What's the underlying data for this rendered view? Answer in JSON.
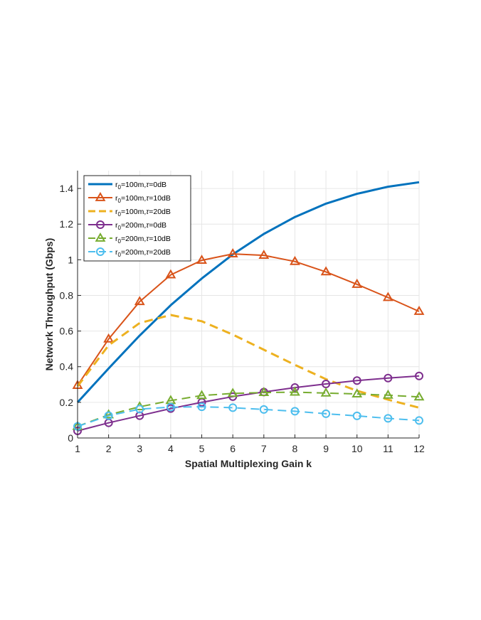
{
  "chart_data": {
    "type": "line",
    "title": "",
    "xlabel": "Spatial Multiplexing Gain k",
    "ylabel": "Network Throughput (Gbps)",
    "xlim": [
      1,
      12
    ],
    "ylim": [
      0,
      1.5
    ],
    "xticks": [
      1,
      2,
      3,
      4,
      5,
      6,
      7,
      8,
      9,
      10,
      11,
      12
    ],
    "yticks": [
      0,
      0.2,
      0.4,
      0.6,
      0.8,
      1,
      1.2,
      1.4
    ],
    "ytick_labels": [
      "0",
      "0.2",
      "0.4",
      "0.6",
      "0.8",
      "1",
      "1.2",
      "1.4"
    ],
    "grid": true,
    "legend_position": "top-left",
    "x": [
      1,
      2,
      3,
      4,
      5,
      6,
      7,
      8,
      9,
      10,
      11,
      12
    ],
    "series": [
      {
        "legend": {
          "pre": "r",
          "sub": "0",
          "post": "=100m,",
          "tau": "τ",
          "post2": "=0dB"
        },
        "values": [
          0.2,
          0.39,
          0.575,
          0.745,
          0.895,
          1.03,
          1.145,
          1.24,
          1.315,
          1.37,
          1.41,
          1.435
        ],
        "color": "#0072BD",
        "dash": "solid",
        "marker": "none",
        "width": 3
      },
      {
        "legend": {
          "pre": "r",
          "sub": "0",
          "post": "=100m,",
          "tau": "τ",
          "post2": "=10dB"
        },
        "values": [
          0.295,
          0.555,
          0.765,
          0.915,
          0.997,
          1.033,
          1.025,
          0.99,
          0.932,
          0.862,
          0.788,
          0.71
        ],
        "color": "#D95319",
        "dash": "solid",
        "marker": "triangle",
        "width": 2
      },
      {
        "legend": {
          "pre": "r",
          "sub": "0",
          "post": "=100m,",
          "tau": "τ",
          "post2": "=20dB"
        },
        "values": [
          0.29,
          0.52,
          0.645,
          0.69,
          0.655,
          0.58,
          0.495,
          0.41,
          0.33,
          0.265,
          0.215,
          0.17
        ],
        "color": "#EDB120",
        "dash": "dashed",
        "marker": "none",
        "width": 3
      },
      {
        "legend": {
          "pre": "r",
          "sub": "0",
          "post": "=200m,",
          "tau": "τ",
          "post2": "=0dB"
        },
        "values": [
          0.04,
          0.085,
          0.125,
          0.165,
          0.2,
          0.232,
          0.258,
          0.283,
          0.303,
          0.322,
          0.336,
          0.348
        ],
        "color": "#7E2F8E",
        "dash": "solid",
        "marker": "circle",
        "width": 2
      },
      {
        "legend": {
          "pre": "r",
          "sub": "0",
          "post": "=200m,",
          "tau": "τ",
          "post2": "=10dB"
        },
        "values": [
          0.065,
          0.13,
          0.175,
          0.21,
          0.238,
          0.25,
          0.255,
          0.257,
          0.252,
          0.247,
          0.24,
          0.23
        ],
        "color": "#77AC30",
        "dash": "dashed",
        "marker": "triangle",
        "width": 2
      },
      {
        "legend": {
          "pre": "r",
          "sub": "0",
          "post": "=200m,",
          "tau": "τ",
          "post2": "=20dB"
        },
        "values": [
          0.065,
          0.125,
          0.162,
          0.173,
          0.175,
          0.17,
          0.16,
          0.15,
          0.136,
          0.124,
          0.11,
          0.098
        ],
        "color": "#4DBEEE",
        "dash": "dashed",
        "marker": "circle",
        "width": 2
      }
    ]
  }
}
